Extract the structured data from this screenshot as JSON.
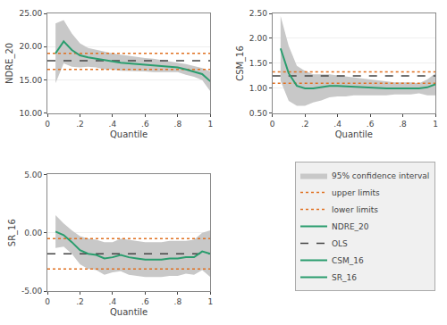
{
  "chart_data": [
    {
      "type": "line",
      "xlabel": "Quantile",
      "ylabel": "NDRE_20",
      "x": [
        0.05,
        0.1,
        0.15,
        0.2,
        0.25,
        0.3,
        0.35,
        0.4,
        0.45,
        0.5,
        0.55,
        0.6,
        0.65,
        0.7,
        0.75,
        0.8,
        0.85,
        0.9,
        0.95,
        1.0
      ],
      "xlim": [
        0,
        1.0
      ],
      "xticks": [
        0,
        {
          "value": 0.2,
          "label": ".2"
        },
        {
          "value": 0.4,
          "label": ".4"
        },
        {
          "value": 0.6,
          "label": ".6"
        },
        {
          "value": 0.8,
          "label": ".8"
        },
        1
      ],
      "ylim": [
        10.0,
        25.0
      ],
      "yticks": [
        {
          "value": 10.0,
          "label": "10.00"
        },
        {
          "value": 15.0,
          "label": "15.00"
        },
        {
          "value": 20.0,
          "label": "20.00"
        },
        {
          "value": 25.0,
          "label": "25.00"
        }
      ],
      "grid": "y",
      "legend": "lower right",
      "series": [
        {
          "name": "95% confidence interval",
          "type": "band",
          "color": "#c8c8c8",
          "upper": [
            23.5,
            24.0,
            22.0,
            20.5,
            19.8,
            19.5,
            19.2,
            19.0,
            18.8,
            18.6,
            18.5,
            18.3,
            18.2,
            18.0,
            17.8,
            17.6,
            17.4,
            17.1,
            16.8,
            16.3
          ],
          "lower": [
            14.5,
            17.5,
            17.0,
            16.9,
            17.0,
            16.9,
            16.6,
            16.6,
            16.4,
            16.4,
            16.3,
            16.3,
            16.2,
            16.2,
            16.2,
            16.2,
            15.8,
            15.5,
            15.0,
            13.3
          ]
        },
        {
          "name": "upper limits",
          "type": "hline",
          "color": "#e07020",
          "line_style": "dotted",
          "value": 19.0
        },
        {
          "name": "lower limits",
          "type": "hline",
          "color": "#e07020",
          "line_style": "dotted",
          "value": 16.6
        },
        {
          "name": "NDRE_20",
          "type": "line",
          "color": "#2a9d6e",
          "line_style": "solid",
          "values": [
            19.0,
            20.8,
            19.5,
            18.7,
            18.4,
            18.2,
            17.9,
            17.8,
            17.6,
            17.5,
            17.4,
            17.3,
            17.2,
            17.1,
            17.0,
            16.9,
            16.6,
            16.3,
            15.9,
            14.8
          ]
        },
        {
          "name": "OLS",
          "type": "hline",
          "color": "#444444",
          "line_style": "dashed",
          "value": 17.9
        }
      ]
    },
    {
      "type": "line",
      "xlabel": "Quantile",
      "ylabel": "CSM_16",
      "x": [
        0.05,
        0.1,
        0.15,
        0.2,
        0.25,
        0.3,
        0.35,
        0.4,
        0.45,
        0.5,
        0.55,
        0.6,
        0.65,
        0.7,
        0.75,
        0.8,
        0.85,
        0.9,
        0.95,
        1.0
      ],
      "xlim": [
        0,
        1.0
      ],
      "xticks": [
        0,
        {
          "value": 0.2,
          "label": ".2"
        },
        {
          "value": 0.4,
          "label": ".4"
        },
        {
          "value": 0.6,
          "label": ".6"
        },
        {
          "value": 0.8,
          "label": ".8"
        },
        1
      ],
      "ylim": [
        0.5,
        2.5
      ],
      "yticks": [
        {
          "value": 0.5,
          "label": "0.50"
        },
        {
          "value": 1.0,
          "label": "1.00"
        },
        {
          "value": 1.5,
          "label": "1.50"
        },
        {
          "value": 2.0,
          "label": "2.00"
        },
        {
          "value": 2.5,
          "label": "2.50"
        }
      ],
      "grid": "y",
      "series": [
        {
          "name": "95% confidence interval",
          "type": "band",
          "color": "#c8c8c8",
          "upper": [
            2.45,
            1.85,
            1.45,
            1.35,
            1.28,
            1.28,
            1.28,
            1.26,
            1.24,
            1.22,
            1.2,
            1.18,
            1.16,
            1.14,
            1.12,
            1.12,
            1.12,
            1.1,
            1.18,
            1.3
          ],
          "lower": [
            1.15,
            0.75,
            0.65,
            0.65,
            0.72,
            0.76,
            0.82,
            0.84,
            0.84,
            0.86,
            0.86,
            0.86,
            0.86,
            0.86,
            0.88,
            0.88,
            0.88,
            0.9,
            0.86,
            0.86
          ]
        },
        {
          "name": "upper limits",
          "type": "hline",
          "color": "#e07020",
          "line_style": "dotted",
          "value": 1.33
        },
        {
          "name": "lower limits",
          "type": "hline",
          "color": "#e07020",
          "line_style": "dotted",
          "value": 1.1
        },
        {
          "name": "OLS",
          "type": "hline",
          "color": "#444444",
          "line_style": "dashed",
          "value": 1.25
        },
        {
          "name": "CSM_16",
          "type": "line",
          "color": "#2a9d6e",
          "line_style": "solid",
          "values": [
            1.8,
            1.3,
            1.05,
            1.0,
            1.0,
            1.02,
            1.05,
            1.05,
            1.04,
            1.04,
            1.03,
            1.02,
            1.01,
            1.0,
            1.0,
            1.0,
            1.0,
            1.0,
            1.02,
            1.08
          ]
        }
      ]
    },
    {
      "type": "line",
      "xlabel": "Quantile",
      "ylabel": "SR_16",
      "x": [
        0.05,
        0.1,
        0.15,
        0.2,
        0.25,
        0.3,
        0.35,
        0.4,
        0.45,
        0.5,
        0.55,
        0.6,
        0.65,
        0.7,
        0.75,
        0.8,
        0.85,
        0.9,
        0.95,
        1.0
      ],
      "xlim": [
        0,
        1.0
      ],
      "xticks": [
        0,
        {
          "value": 0.2,
          "label": ".2"
        },
        {
          "value": 0.4,
          "label": ".4"
        },
        {
          "value": 0.6,
          "label": ".6"
        },
        {
          "value": 0.8,
          "label": ".8"
        },
        1
      ],
      "ylim": [
        -5.0,
        5.0
      ],
      "yticks": [
        {
          "value": -5.0,
          "label": "-5.00"
        },
        {
          "value": 0.0,
          "label": "0.00"
        },
        {
          "value": 5.0,
          "label": "5.00"
        }
      ],
      "grid": "y",
      "series": [
        {
          "name": "95% confidence interval",
          "type": "band",
          "color": "#c8c8c8",
          "upper": [
            1.5,
            0.8,
            0.2,
            -0.3,
            -0.5,
            -0.6,
            -0.8,
            -0.8,
            -0.5,
            -0.6,
            -0.7,
            -0.8,
            -0.8,
            -0.8,
            -0.7,
            -0.7,
            -0.7,
            -0.6,
            0.0,
            0.2
          ],
          "lower": [
            -1.3,
            -1.2,
            -1.8,
            -2.7,
            -3.1,
            -3.2,
            -3.6,
            -3.4,
            -3.3,
            -3.6,
            -3.7,
            -3.8,
            -3.8,
            -3.8,
            -3.7,
            -3.7,
            -3.5,
            -3.6,
            -3.2,
            -3.8
          ]
        },
        {
          "name": "upper limits",
          "type": "hline",
          "color": "#e07020",
          "line_style": "dotted",
          "value": -0.5
        },
        {
          "name": "lower limits",
          "type": "hline",
          "color": "#e07020",
          "line_style": "dotted",
          "value": -3.1
        },
        {
          "name": "OLS",
          "type": "hline",
          "color": "#444444",
          "line_style": "dashed",
          "value": -1.8
        },
        {
          "name": "SR_16",
          "type": "line",
          "color": "#2a9d6e",
          "line_style": "solid",
          "values": [
            0.1,
            -0.2,
            -0.8,
            -1.5,
            -1.8,
            -1.9,
            -2.2,
            -2.1,
            -1.9,
            -2.1,
            -2.2,
            -2.3,
            -2.3,
            -2.3,
            -2.2,
            -2.2,
            -2.1,
            -2.1,
            -1.6,
            -1.8
          ]
        }
      ]
    }
  ]
}
